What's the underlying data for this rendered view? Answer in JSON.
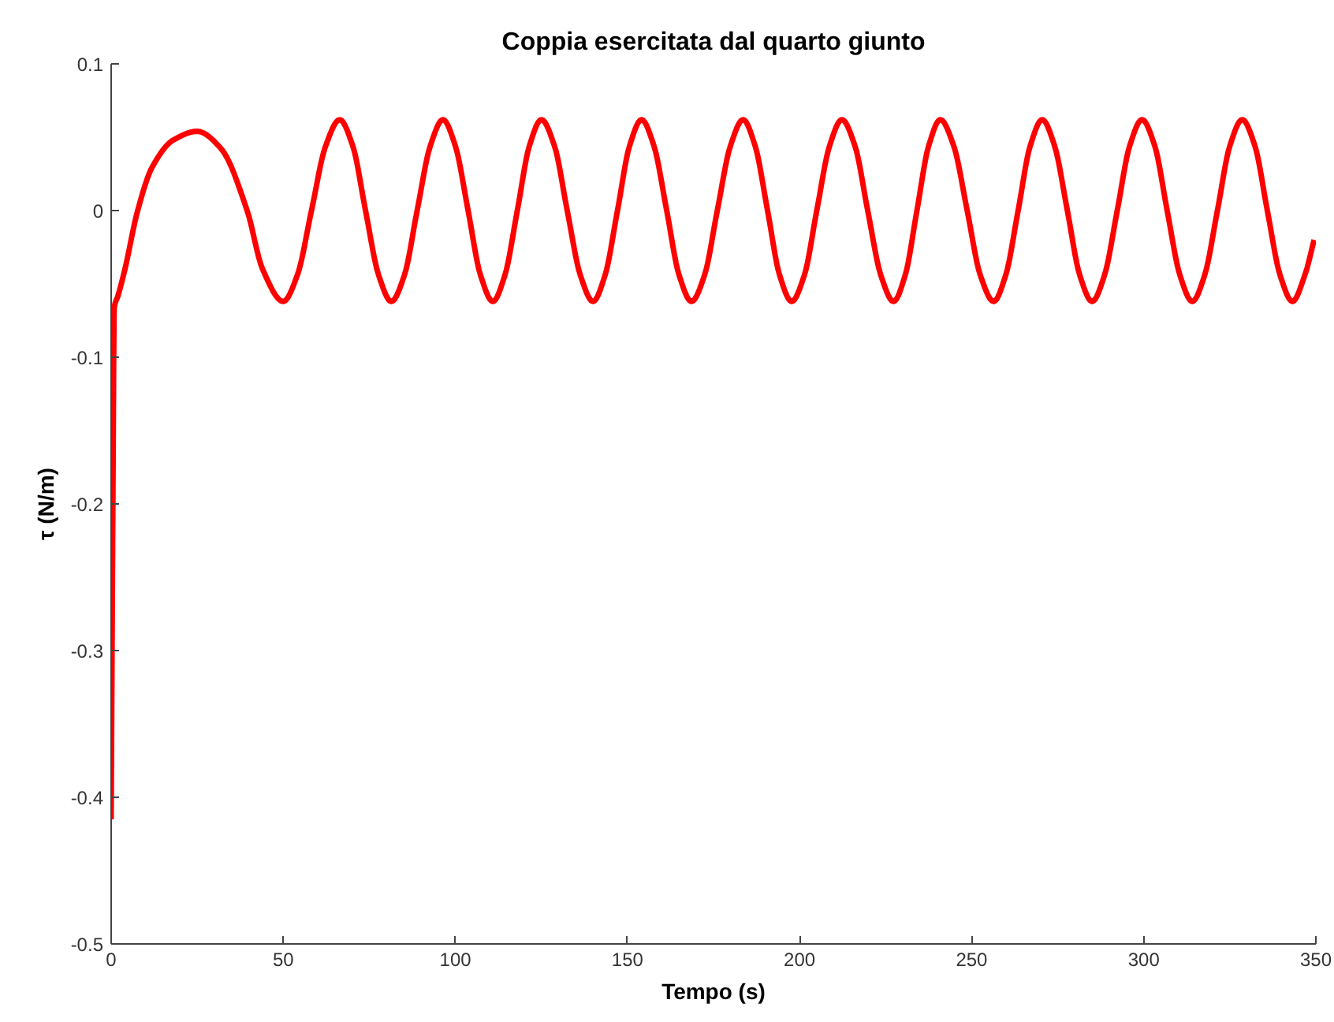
{
  "chart_data": {
    "type": "line",
    "title": "Coppia esercitata dal quarto giunto",
    "xlabel": "Tempo (s)",
    "ylabel": "τ (N/m)",
    "xlim": [
      0,
      350
    ],
    "ylim": [
      -0.5,
      0.1
    ],
    "xticks": [
      0,
      50,
      100,
      150,
      200,
      250,
      300,
      350
    ],
    "yticks": [
      -0.5,
      -0.4,
      -0.3,
      -0.2,
      -0.1,
      0,
      0.1
    ],
    "grid": false,
    "line_style": "solid",
    "series": [
      {
        "color": "#ff0000",
        "x": [
          0,
          0.5,
          0.9,
          2,
          4,
          7.7,
          12,
          18,
          25,
          32,
          39.5,
          44,
          50,
          54.1,
          58.2,
          62.3,
          66.4,
          70.2,
          73.9,
          77.7,
          81.4,
          85.2,
          88.9,
          92.7,
          96.4,
          100.0,
          103.7,
          107.3,
          110.9,
          114.4,
          118.0,
          121.5,
          125,
          128.8,
          132.5,
          136.3,
          140,
          143.5,
          147.1,
          150.6,
          154.1,
          157.7,
          161.4,
          165.0,
          168.6,
          172.4,
          176.1,
          179.9,
          183.6,
          187.1,
          190.7,
          194.2,
          197.7,
          201.4,
          205.0,
          208.7,
          212.3,
          216.1,
          219.8,
          223.6,
          227.3,
          230.7,
          234.1,
          237.5,
          240.9,
          244.8,
          248.7,
          252.5,
          256.4,
          259.9,
          263.5,
          267.0,
          270.5,
          274.1,
          277.8,
          281.4,
          285,
          288.6,
          292.3,
          295.9,
          299.5,
          303.2,
          306.8,
          310.5,
          314.1,
          317.7,
          321.4,
          325.0,
          328.6,
          332.3,
          335.9,
          339.6,
          343.2,
          346.8,
          349.5
        ],
        "values": [
          -0.415,
          -0.2,
          -0.066,
          -0.058,
          -0.04,
          0,
          0.03,
          0.048,
          0.054,
          0.042,
          0,
          -0.04,
          -0.062,
          -0.044,
          0,
          0.044,
          0.062,
          0.044,
          0,
          -0.044,
          -0.062,
          -0.044,
          0,
          0.044,
          0.062,
          0.044,
          0,
          -0.044,
          -0.062,
          -0.044,
          0,
          0.044,
          0.062,
          0.044,
          0,
          -0.044,
          -0.062,
          -0.044,
          0,
          0.044,
          0.062,
          0.044,
          0,
          -0.044,
          -0.062,
          -0.044,
          0,
          0.044,
          0.062,
          0.044,
          0,
          -0.044,
          -0.062,
          -0.044,
          0,
          0.044,
          0.062,
          0.044,
          0,
          -0.044,
          -0.062,
          -0.044,
          0,
          0.044,
          0.062,
          0.044,
          0,
          -0.044,
          -0.062,
          -0.044,
          0,
          0.044,
          0.062,
          0.044,
          0,
          -0.044,
          -0.062,
          -0.044,
          0,
          0.044,
          0.062,
          0.044,
          0,
          -0.044,
          -0.062,
          -0.044,
          0,
          0.044,
          0.062,
          0.044,
          0,
          -0.044,
          -0.062,
          -0.044,
          -0.02
        ]
      }
    ]
  }
}
